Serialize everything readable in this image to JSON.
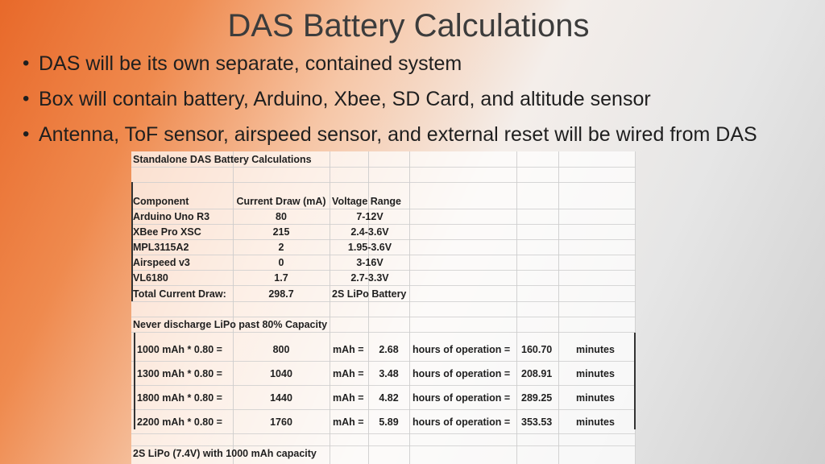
{
  "title": "DAS Battery Calculations",
  "bullets": [
    "DAS will be its own separate, contained system",
    "Box will contain battery, Arduino, Xbee, SD Card, and altitude sensor",
    "Antenna, ToF sensor, airspeed sensor, and external reset will be wired from DAS"
  ],
  "table": {
    "heading": "Standalone DAS Battery Calculations",
    "columns": [
      "Component",
      "Current Draw (mA)",
      "Voltage Range"
    ],
    "rows": [
      [
        "Arduino Uno R3",
        "80",
        "7-12V"
      ],
      [
        "XBee Pro XSC",
        "215",
        "2.4-3.6V"
      ],
      [
        "MPL3115A2",
        "2",
        "1.95-3.6V"
      ],
      [
        "Airspeed v3",
        "0",
        "3-16V"
      ],
      [
        "VL6180",
        "1.7",
        "2.7-3.3V"
      ]
    ],
    "total": {
      "label": "Total Current Draw:",
      "value": "298.7",
      "battery": "2S LiPo Battery"
    },
    "note": "Never discharge LiPo past 80% Capacity",
    "calcs": [
      {
        "expr": "1000 mAh * 0.80 =",
        "result": "800",
        "unit": "mAh =",
        "hours": "2.68",
        "hours_label": "hours of operation =",
        "minutes": "160.70",
        "minutes_label": "minutes"
      },
      {
        "expr": "1300 mAh * 0.80 =",
        "result": "1040",
        "unit": "mAh =",
        "hours": "3.48",
        "hours_label": "hours of operation =",
        "minutes": "208.91",
        "minutes_label": "minutes"
      },
      {
        "expr": "1800 mAh * 0.80 =",
        "result": "1440",
        "unit": "mAh =",
        "hours": "4.82",
        "hours_label": "hours of operation =",
        "minutes": "289.25",
        "minutes_label": "minutes"
      },
      {
        "expr": "2200 mAh * 0.80 =",
        "result": "1760",
        "unit": "mAh =",
        "hours": "5.89",
        "hours_label": "hours of operation =",
        "minutes": "353.53",
        "minutes_label": "minutes"
      }
    ],
    "footer": "2S LiPo (7.4V) with 1000 mAh capacity"
  }
}
